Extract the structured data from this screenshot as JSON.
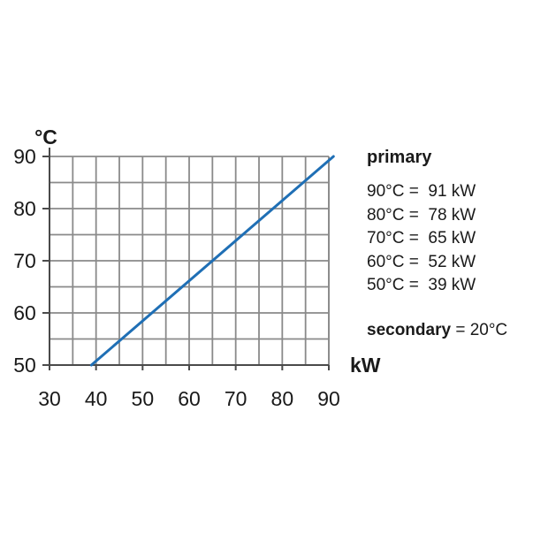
{
  "chart_data": {
    "type": "line",
    "x": [
      39,
      91
    ],
    "series": [
      {
        "values": [
          50,
          90
        ],
        "color": "#1f6fb5"
      }
    ],
    "xlim": [
      30,
      90
    ],
    "ylim": [
      50,
      90
    ],
    "xticks": [
      "30",
      "40",
      "50",
      "60",
      "70",
      "80",
      "90"
    ],
    "yticks": [
      "50",
      "60",
      "70",
      "80",
      "90"
    ],
    "xlabel": "kW",
    "ylabel": "°C",
    "grid": true,
    "legend": {
      "title": "primary",
      "rows": [
        {
          "temp": "90°C",
          "eq": " =  ",
          "power": "91 kW"
        },
        {
          "temp": "80°C",
          "eq": " =  ",
          "power": "78 kW"
        },
        {
          "temp": "70°C",
          "eq": " =  ",
          "power": "65 kW"
        },
        {
          "temp": "60°C",
          "eq": " =  ",
          "power": "52 kW"
        },
        {
          "temp": "50°C",
          "eq": " =  ",
          "power": "39 kW"
        }
      ],
      "secondary_label": "secondary",
      "secondary_value": " = 20°C"
    },
    "colors": {
      "line": "#1f6fb5",
      "grid": "#8a8a8a",
      "axis": "#4a4a4a"
    }
  }
}
